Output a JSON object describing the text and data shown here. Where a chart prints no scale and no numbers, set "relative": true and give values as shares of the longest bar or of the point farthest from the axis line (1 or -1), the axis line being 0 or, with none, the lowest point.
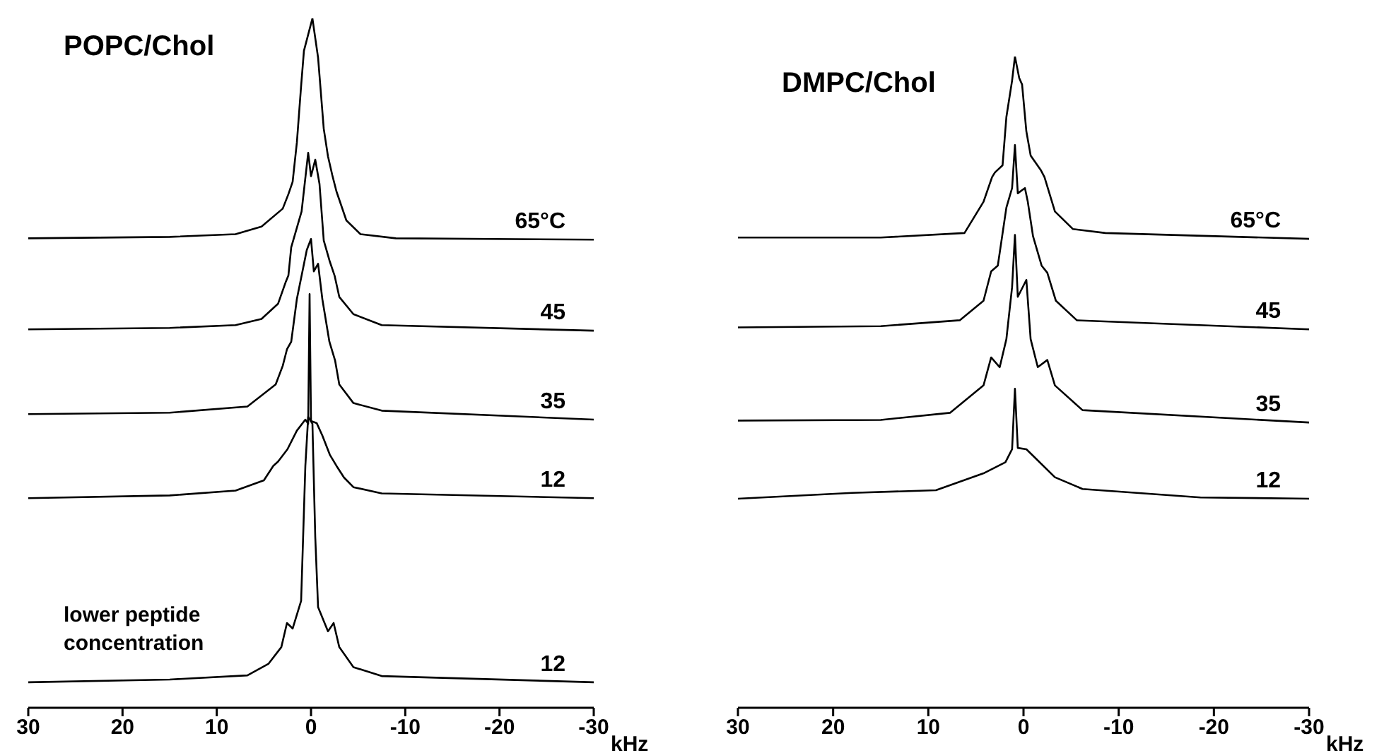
{
  "chart_data": [
    {
      "type": "line",
      "title": "POPC/Chol",
      "xlabel": "kHz",
      "relative": true,
      "xlim": [
        30,
        -30
      ],
      "xticks": [
        30,
        20,
        10,
        0,
        -10,
        -20,
        -30
      ],
      "annotations": [
        "lower peptide concentration"
      ],
      "series": [
        {
          "name": "65°C",
          "color": "#000000",
          "x": [
            30,
            15,
            8,
            5.25,
            3.0,
            2.4,
            1.95,
            1.5,
            1.05,
            0.75,
            -0.15,
            -0.75,
            -1.35,
            -1.8,
            -2.25,
            -2.7,
            -3.75,
            -5.25,
            -9,
            -30
          ],
          "values": [
            0.681,
            0.683,
            0.687,
            0.698,
            0.724,
            0.745,
            0.763,
            0.82,
            0.902,
            0.953,
            1.0,
            0.943,
            0.84,
            0.8,
            0.773,
            0.749,
            0.707,
            0.687,
            0.681,
            0.679
          ]
        },
        {
          "name": "45",
          "color": "#000000",
          "x": [
            30,
            15,
            8,
            5.25,
            3.5,
            2.7,
            2.4,
            2.1,
            1.0,
            0.3,
            0,
            -0.45,
            -0.9,
            -1.35,
            -2.0,
            -2.5,
            -3.0,
            -4.5,
            -7.5,
            -30
          ],
          "values": [
            0.549,
            0.551,
            0.555,
            0.564,
            0.586,
            0.617,
            0.627,
            0.668,
            0.72,
            0.805,
            0.771,
            0.795,
            0.76,
            0.678,
            0.647,
            0.627,
            0.596,
            0.571,
            0.555,
            0.547
          ]
        },
        {
          "name": "35",
          "color": "#000000",
          "x": [
            30,
            15,
            6.75,
            3.75,
            3.0,
            2.55,
            2.1,
            1.5,
            0.45,
            0,
            -0.3,
            -0.75,
            -1.2,
            -1.95,
            -2.55,
            -3.0,
            -4.5,
            -7.5,
            -30
          ],
          "values": [
            0.426,
            0.428,
            0.437,
            0.469,
            0.496,
            0.52,
            0.531,
            0.593,
            0.664,
            0.68,
            0.633,
            0.644,
            0.593,
            0.531,
            0.504,
            0.469,
            0.442,
            0.431,
            0.418
          ]
        },
        {
          "name": "12",
          "color": "#000000",
          "x": [
            30,
            15,
            8,
            5,
            4,
            3.5,
            2.5,
            1.5,
            0.6,
            0.3,
            0.15,
            0,
            -0.6,
            -1.2,
            -2.0,
            -2.7,
            -3.5,
            -4.5,
            -7.5,
            -30
          ],
          "values": [
            0.304,
            0.308,
            0.315,
            0.33,
            0.351,
            0.357,
            0.375,
            0.402,
            0.418,
            0.412,
            0.6,
            0.416,
            0.413,
            0.395,
            0.367,
            0.351,
            0.334,
            0.32,
            0.311,
            0.304
          ]
        },
        {
          "name": "12",
          "color": "#000000",
          "x": [
            30,
            15,
            6.75,
            4.5,
            3.15,
            2.55,
            1.95,
            1.05,
            0.6,
            0.3,
            -0.15,
            -0.45,
            -0.75,
            -1.8,
            -2.4,
            -3.0,
            -4.5,
            -7.5,
            -30
          ],
          "values": [
            0.037,
            0.041,
            0.047,
            0.064,
            0.088,
            0.123,
            0.115,
            0.155,
            0.351,
            0.422,
            0.412,
            0.248,
            0.146,
            0.111,
            0.123,
            0.088,
            0.059,
            0.046,
            0.037
          ]
        }
      ]
    },
    {
      "type": "line",
      "title": "DMPC/Chol",
      "xlabel": "kHz",
      "relative": true,
      "xlim": [
        30,
        -30
      ],
      "xticks": [
        30,
        20,
        10,
        0,
        -10,
        -20,
        -30
      ],
      "series": [
        {
          "name": "65°C",
          "color": "#000000",
          "x": [
            30,
            15,
            6.2,
            4.2,
            3.3,
            3.0,
            2.2,
            1.8,
            1.2,
            0.9,
            0.45,
            0.15,
            -0.3,
            -0.75,
            -1.8,
            -2.2,
            -3.3,
            -5.2,
            -8.6,
            -30
          ],
          "values": [
            0.722,
            0.722,
            0.729,
            0.777,
            0.815,
            0.822,
            0.833,
            0.907,
            0.963,
            1.0,
            0.967,
            0.957,
            0.885,
            0.848,
            0.826,
            0.815,
            0.762,
            0.735,
            0.729,
            0.72
          ]
        },
        {
          "name": "45",
          "color": "#000000",
          "x": [
            30,
            15,
            6.7,
            4.2,
            3.4,
            2.7,
            1.8,
            1.2,
            0.9,
            0.6,
            -0.15,
            -0.45,
            -1.0,
            -1.9,
            -2.5,
            -3.4,
            -5.6,
            -30
          ],
          "values": [
            0.584,
            0.586,
            0.595,
            0.625,
            0.67,
            0.679,
            0.768,
            0.798,
            0.864,
            0.79,
            0.798,
            0.777,
            0.724,
            0.679,
            0.668,
            0.625,
            0.595,
            0.581
          ]
        },
        {
          "name": "35",
          "color": "#000000",
          "x": [
            30,
            15,
            7.7,
            4.2,
            3.4,
            2.5,
            1.8,
            1.2,
            0.9,
            0.6,
            -0.3,
            -0.75,
            -1.5,
            -2.5,
            -3.3,
            -6.2,
            -30
          ],
          "values": [
            0.441,
            0.442,
            0.453,
            0.495,
            0.538,
            0.523,
            0.566,
            0.646,
            0.726,
            0.631,
            0.657,
            0.566,
            0.523,
            0.534,
            0.495,
            0.457,
            0.438
          ]
        },
        {
          "name": "12",
          "color": "#000000",
          "x": [
            30,
            18,
            9.2,
            4.2,
            1.9,
            1.2,
            0.9,
            0.6,
            -0.3,
            -3.3,
            -6.2,
            -18.6,
            -30
          ],
          "values": [
            0.321,
            0.33,
            0.334,
            0.36,
            0.377,
            0.397,
            0.49,
            0.399,
            0.397,
            0.354,
            0.336,
            0.323,
            0.321
          ]
        }
      ]
    }
  ]
}
